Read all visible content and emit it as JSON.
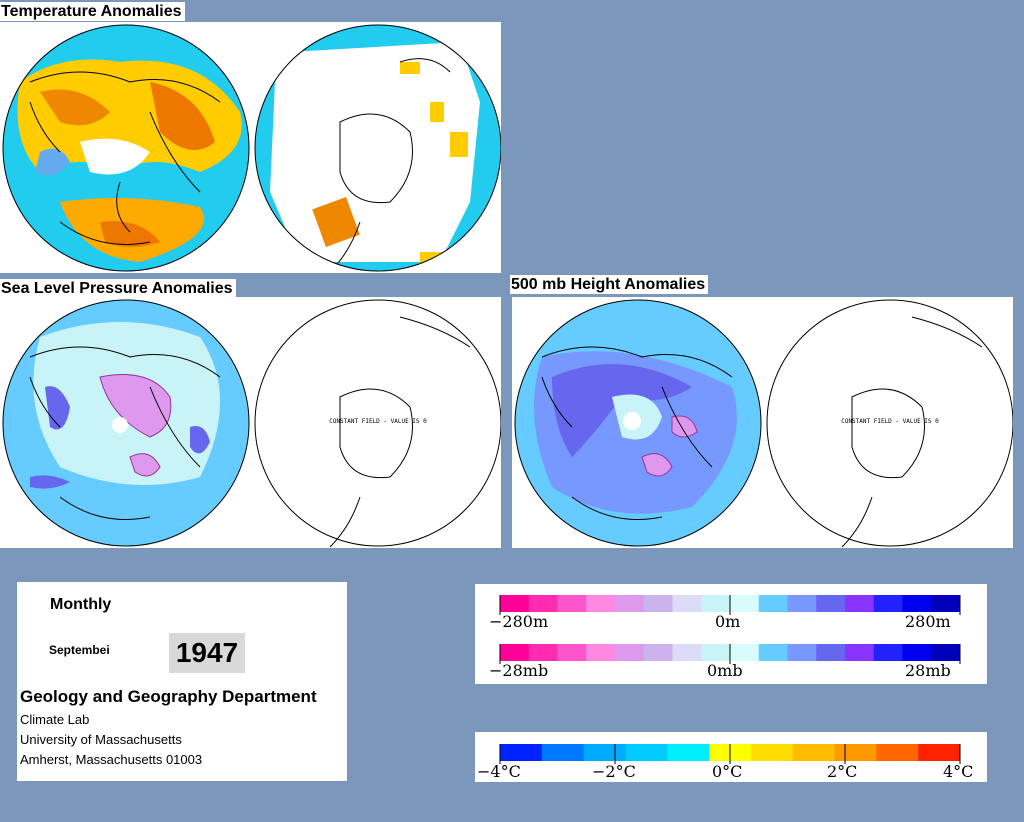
{
  "panels": {
    "temperature": {
      "title": "Temperature Anomalies"
    },
    "slp": {
      "title": "Sea Level Pressure Anomalies",
      "southern_note": "CONSTANT FIELD - VALUE IS 0"
    },
    "height500": {
      "title": "500 mb Height Anomalies",
      "southern_note": "CONSTANT FIELD - VALUE IS 0"
    }
  },
  "info": {
    "period": "Monthly",
    "month": "Septembei",
    "year": "1947",
    "department": "Geology and Geography Department",
    "lines": [
      "Climate Lab",
      "University of Massachusetts",
      "Amherst, Massachusetts 01003"
    ]
  },
  "legends": {
    "height": {
      "min": "−280m",
      "mid": "0m",
      "max": "280m"
    },
    "pressure": {
      "min": "−28mb",
      "mid": "0mb",
      "max": "28mb"
    },
    "temperature": {
      "labels": [
        "−4°C",
        "−2°C",
        "0°C",
        "2°C",
        "4°C"
      ]
    }
  },
  "colors": {
    "background": "#7b97bb",
    "anomaly_scale": [
      "#ff0099",
      "#ff2bb0",
      "#ff55cc",
      "#ff88e0",
      "#dd99ee",
      "#ccb3ee",
      "#dcdcf8",
      "#c8f4f8",
      "#d8fcfc",
      "#66ccff",
      "#7799ff",
      "#6666ee",
      "#8833ff",
      "#2222ff",
      "#0000ee",
      "#0000bb"
    ],
    "temperature_scale": [
      "#0022ff",
      "#0077ff",
      "#00aaff",
      "#00ccff",
      "#00eeff",
      "#ffff00",
      "#ffdd00",
      "#ffbb00",
      "#ff9900",
      "#ff6600",
      "#ff2200"
    ]
  }
}
